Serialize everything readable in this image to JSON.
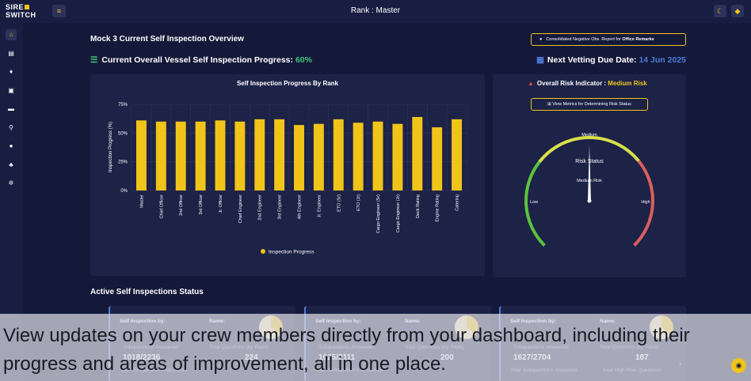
{
  "app": {
    "logo_line1": "SIRE",
    "logo_line2": "SWITCH",
    "rank_label": "Rank :  Master"
  },
  "icons": {
    "menu": "menu-icon",
    "theme": "moon-icon",
    "settings": "gear-icon",
    "chat": "chat-icon"
  },
  "sidebar": {
    "items": [
      {
        "name": "home-icon",
        "glyph": "⌂"
      },
      {
        "name": "document-icon",
        "glyph": "▤"
      },
      {
        "name": "user-check-icon",
        "glyph": "♦"
      },
      {
        "name": "file-icon",
        "glyph": "▣"
      },
      {
        "name": "folder-icon",
        "glyph": "▬"
      },
      {
        "name": "search-icon",
        "glyph": "⚲"
      },
      {
        "name": "user-icon",
        "glyph": "●"
      },
      {
        "name": "users-icon",
        "glyph": "♣"
      },
      {
        "name": "settings-icon",
        "glyph": "✲"
      }
    ]
  },
  "header": {
    "overview_title": "Mock 3 Current Self Inspection Overview",
    "report_button_prefix": "Consolidated Negative Obs. Report for ",
    "report_button_bold": "Office Remarks",
    "progress_label": "Current Overall Vessel Self Inspection Progress: ",
    "progress_value": "60%",
    "vetting_label": "Next Vetting Due Date: ",
    "vetting_date": "14 Jun 2025"
  },
  "chart_data": {
    "type": "bar",
    "title": "Self Inspection Progress By Rank",
    "ylabel": "Inspection Progress (%)",
    "xlabel": "",
    "ylim": [
      0,
      75
    ],
    "yticks": [
      "0%",
      "25%",
      "50%",
      "75%"
    ],
    "legend": "Inspection Progress",
    "legend_position": "bottom",
    "grid": true,
    "color": "#f0c419",
    "categories": [
      "Master",
      "Chief Officer",
      "2nd Officer",
      "3rd Officer",
      "Jr. Officer",
      "Chief Engineer",
      "2nd Engineer",
      "3rd Engineer",
      "4th Engineer",
      "Jr. Engineer",
      "ETO (Sr)",
      "ETO (Jr)",
      "Cargo Engineer (Sr)",
      "Cargo Engineer (Jr)",
      "Deck Rating",
      "Engine Rating",
      "Catering"
    ],
    "values": [
      61,
      60,
      60,
      60,
      61,
      60,
      62,
      62,
      57,
      58,
      62,
      59,
      60,
      58,
      64,
      55,
      62
    ]
  },
  "risk": {
    "title_prefix": "Overall Risk Indicator : ",
    "level": "Medium Risk",
    "metrics_button": "View Metrics for Determining Risk Status",
    "gauge_low": "Low",
    "gauge_medium": "Medium",
    "gauge_high": "High",
    "gauge_center": "Risk Status",
    "gauge_value": "Medium Risk",
    "value": 0.5,
    "colors": {
      "low": "#5cc23e",
      "medium": "#d8e04a",
      "high": "#d95f5f"
    }
  },
  "active": {
    "title": "Active Self Inspections Status",
    "cards": [
      {
        "by_label": "Self Inspection by:",
        "name_label": "Name:",
        "answered_label": "Subquestions Answered",
        "total_label": "Total Questions (by Rank)",
        "answered_value": "1018/2236",
        "total_value": "224",
        "bottom_left": "Total Subquestions Answered",
        "bottom_right": ""
      },
      {
        "by_label": "Self Inspection by:",
        "name_label": "Name:",
        "answered_label": "Subquestions Answered",
        "total_label": "Total Questions (by Rank)",
        "answered_value": "1025/2111",
        "total_value": "200",
        "bottom_left": "Total Subquestions Answered",
        "bottom_right": ""
      },
      {
        "by_label": "Self Inspection by:",
        "name_label": "Name:",
        "answered_label": "Subquestions Answered",
        "total_label": "Total Questions (by Rank)",
        "answered_value": "1627/2704",
        "total_value": "187",
        "bottom_left": "Total Subquestions Answered",
        "bottom_right": "Total High Risk Questions"
      }
    ]
  },
  "caption": "View updates on your crew members directly from your dashboard, including their progress and areas of improvement, all in one place."
}
